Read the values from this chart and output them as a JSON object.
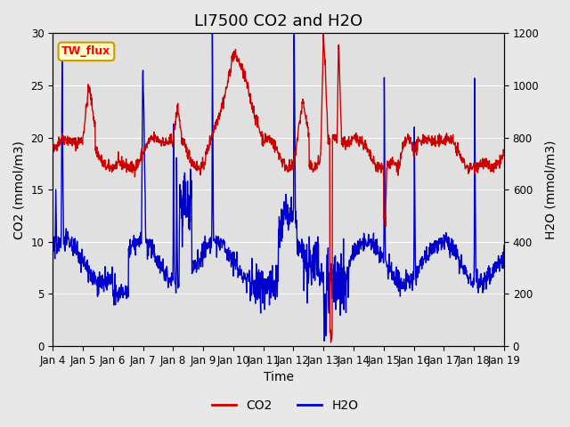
{
  "title": "LI7500 CO2 and H2O",
  "xlabel": "Time",
  "ylabel_left": "CO2 (mmol/m3)",
  "ylabel_right": "H2O (mmol/m3)",
  "ylim_left": [
    0,
    30
  ],
  "ylim_right": [
    0,
    1200
  ],
  "xtick_labels": [
    "Jan 4",
    "Jan 5",
    "Jan 6",
    "Jan 7",
    "Jan 8",
    "Jan 9",
    "Jan 10",
    "Jan 11",
    "Jan 12",
    "Jan 13",
    "Jan 14",
    "Jan 15",
    "Jan 16",
    "Jan 17",
    "Jan 18",
    "Jan 19"
  ],
  "background_color": "#e8e8e8",
  "axes_color": "#f0f0f0",
  "co2_color": "#cc0000",
  "h2o_color": "#0000cc",
  "watermark_text": "TW_flux",
  "watermark_bg": "#ffffcc",
  "watermark_border": "#cc9900",
  "title_fontsize": 13,
  "label_fontsize": 10,
  "tick_fontsize": 8.5
}
